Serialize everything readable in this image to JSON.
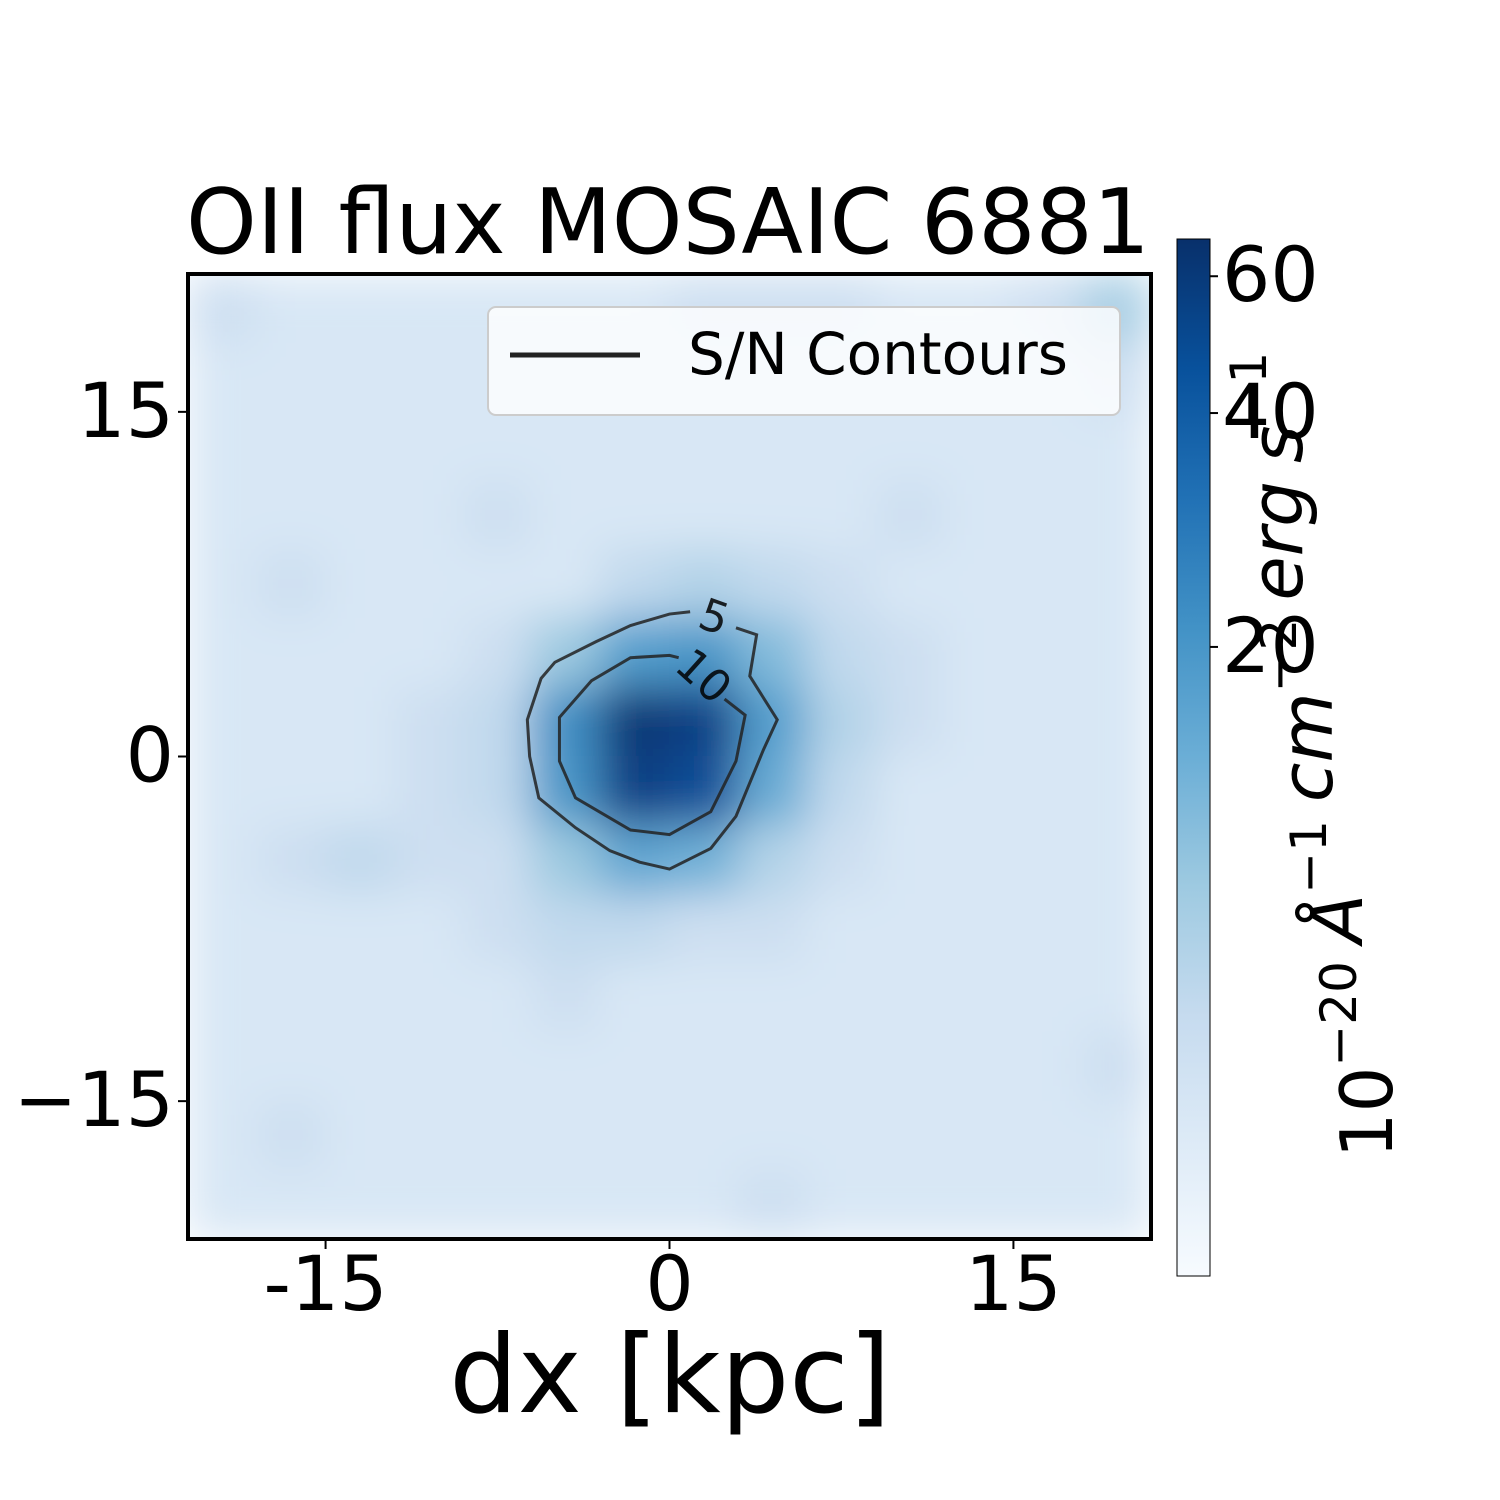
{
  "chart_data": {
    "type": "heatmap",
    "title": "OII flux MOSAIC 6881",
    "xlabel": "dx [kpc]",
    "xlim": [
      -21,
      21
    ],
    "ylim": [
      -21,
      21
    ],
    "xticks": [
      {
        "value": -15,
        "label": "-15"
      },
      0,
      15
    ],
    "yticks": [
      {
        "value": -15,
        "label": "−15"
      },
      0,
      15
    ],
    "colors": [
      "#f7fbff",
      "#deebf7",
      "#c6dbef",
      "#9ecae1",
      "#6baed6",
      "#4292c6",
      "#2171b5",
      "#08519c",
      "#08306b"
    ],
    "colorbar_log": true,
    "clim": [
      3.1,
      67
    ],
    "colorbar_ticks": [
      20,
      40,
      60
    ],
    "colorbar_label": [
      {
        "base": "10",
        "sup": "−20"
      },
      {
        "base": "Å",
        "sup": "−1"
      },
      {
        "base": "cm",
        "sup": "−2"
      },
      {
        "base": "erg"
      },
      {
        "base": "s",
        "sup": "−1"
      }
    ],
    "z": [
      [
        6,
        5,
        5,
        5,
        5,
        5,
        5,
        6,
        6,
        6,
        5,
        5,
        6,
        9
      ],
      [
        5,
        5,
        5,
        5,
        5,
        5,
        5,
        5,
        5,
        5,
        5,
        5,
        5,
        6
      ],
      [
        5,
        5,
        5,
        5,
        5,
        5,
        5,
        5,
        5,
        5,
        5,
        5,
        5,
        5
      ],
      [
        5,
        5,
        5,
        5,
        6,
        5,
        5,
        5,
        5,
        5,
        6,
        5,
        5,
        5
      ],
      [
        5,
        6,
        5,
        5,
        5,
        5,
        7,
        8,
        7,
        6,
        5,
        5,
        5,
        5
      ],
      [
        5,
        5,
        5,
        5,
        6,
        10,
        18,
        20,
        12,
        7,
        6,
        5,
        5,
        5
      ],
      [
        5,
        5,
        5,
        6,
        7,
        22,
        62,
        55,
        18,
        8,
        6,
        5,
        5,
        5
      ],
      [
        5,
        5,
        5,
        6,
        7,
        20,
        55,
        48,
        15,
        7,
        5,
        5,
        5,
        5
      ],
      [
        5,
        6,
        7,
        6,
        6,
        10,
        16,
        14,
        8,
        6,
        5,
        5,
        5,
        5
      ],
      [
        5,
        5,
        5,
        5,
        6,
        7,
        7,
        6,
        6,
        5,
        5,
        5,
        5,
        5
      ],
      [
        5,
        5,
        5,
        5,
        5,
        6,
        5,
        5,
        5,
        5,
        5,
        5,
        5,
        5
      ],
      [
        5,
        5,
        5,
        5,
        5,
        5,
        5,
        5,
        5,
        5,
        5,
        5,
        5,
        6
      ],
      [
        5,
        6,
        5,
        5,
        5,
        5,
        5,
        5,
        5,
        5,
        5,
        5,
        5,
        5
      ],
      [
        5,
        5,
        5,
        5,
        5,
        5,
        5,
        5,
        6,
        5,
        5,
        5,
        5,
        5
      ]
    ],
    "legend_label": "S/N Contours",
    "contour_color": "#222222",
    "contours": [
      {
        "level": 5,
        "x": [
          0.9,
          0,
          -1.7,
          -3.2,
          -5.0,
          -5.6,
          -6.2,
          -6.1,
          -5.7,
          -4.1,
          -2.6,
          -1.3,
          0,
          1.8,
          2.9,
          4.1,
          4.7,
          3.5,
          3.8,
          2.9
        ],
        "y": [
          6.3,
          6.2,
          5.7,
          5.0,
          4.1,
          3.4,
          1.6,
          0,
          -1.8,
          -3.1,
          -4.1,
          -4.6,
          -4.9,
          -4.0,
          -2.6,
          0.3,
          1.6,
          3.5,
          5.3,
          5.6
        ]
      },
      {
        "level": 10,
        "x": [
          2.4,
          3.3,
          2.9,
          1.8,
          0,
          -1.7,
          -4.1,
          -4.8,
          -4.8,
          -3.4,
          -1.7,
          0,
          0.4
        ],
        "y": [
          2.5,
          1.8,
          -0.2,
          -2.4,
          -3.4,
          -3.2,
          -1.8,
          -0.2,
          1.7,
          3.3,
          4.3,
          4.4,
          4.3
        ]
      }
    ]
  }
}
